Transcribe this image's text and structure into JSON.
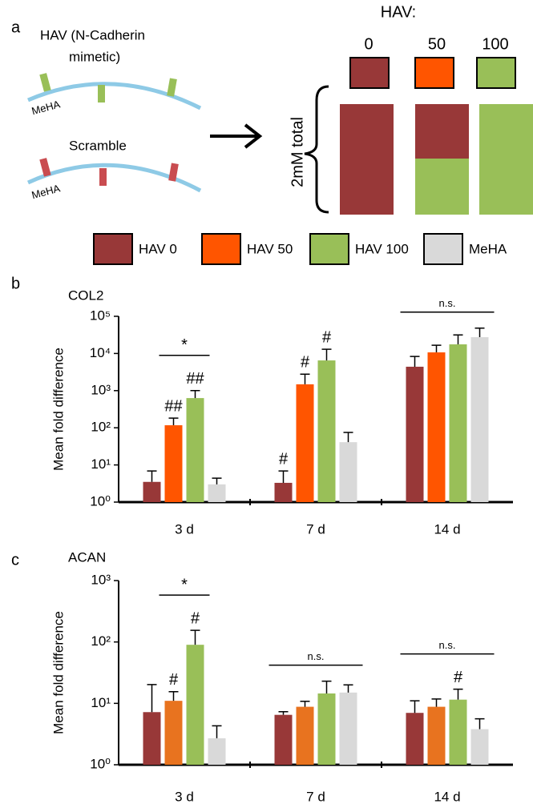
{
  "panel_labels": [
    "a",
    "b",
    "c"
  ],
  "diagram": {
    "peptide_label": [
      "HAV (N-Cadherin",
      "mimetic)"
    ],
    "scramble_label": "Scramble",
    "backbone_label": "MeHA",
    "header": "HAV:",
    "doses": [
      "0",
      "50",
      "100"
    ],
    "total_label": "2mM total"
  },
  "chart_data": [
    {
      "type": "bar",
      "title": "COL2",
      "y_label": "Mean fold difference",
      "log_scale": true,
      "categories": [
        "3 d",
        "7 d",
        "14 d"
      ],
      "ylim": [
        1,
        100000
      ],
      "yticks": [
        {
          "value": 1,
          "label": "10⁰"
        },
        {
          "value": 10,
          "label": "10¹"
        },
        {
          "value": 100,
          "label": "10²"
        },
        {
          "value": 1000,
          "label": "10³"
        },
        {
          "value": 10000,
          "label": "10⁴"
        },
        {
          "value": 100000,
          "label": "10⁵"
        }
      ],
      "series": [
        {
          "name": "HAV 0",
          "color": "#983838",
          "values": [
            3.5,
            3.3,
            4400
          ],
          "errors": [
            3.4,
            3.6,
            3900
          ]
        },
        {
          "name": "HAV 50",
          "color": "#ff5500",
          "values": [
            117,
            1480,
            10700
          ],
          "errors": [
            65,
            1300,
            6000
          ]
        },
        {
          "name": "HAV 100",
          "color": "#99bf58",
          "values": [
            630,
            6500,
            17600
          ],
          "errors": [
            370,
            6500,
            14000
          ]
        },
        {
          "name": "MeHA",
          "color": "#d9d9d9",
          "values": [
            3.0,
            41,
            27500
          ],
          "errors": [
            1.4,
            34,
            20500
          ]
        }
      ],
      "annotations": [
        {
          "text": "##",
          "category": 0,
          "series": 1
        },
        {
          "text": "##",
          "category": 0,
          "series": 2
        },
        {
          "text": "#",
          "category": 1,
          "series": 0
        },
        {
          "text": "#",
          "category": 1,
          "series": 1
        },
        {
          "text": "#",
          "category": 1,
          "series": 2
        }
      ],
      "brackets": [
        {
          "text": "*",
          "category": 0,
          "series": [
            1,
            2
          ]
        },
        {
          "text": "n.s.",
          "category": 2,
          "series": [
            0,
            3
          ]
        }
      ]
    },
    {
      "type": "bar",
      "title": "ACAN",
      "y_label": "Mean fold difference",
      "log_scale": true,
      "categories": [
        "3 d",
        "7 d",
        "14 d"
      ],
      "ylim": [
        1,
        1000
      ],
      "yticks": [
        {
          "value": 1,
          "label": "10⁰"
        },
        {
          "value": 10,
          "label": "10¹"
        },
        {
          "value": 100,
          "label": "10²"
        },
        {
          "value": 1000,
          "label": "10³"
        }
      ],
      "series": [
        {
          "color": "#983838",
          "values": [
            7.2,
            6.5,
            7.0
          ],
          "errors": [
            13,
            0.8,
            4
          ]
        },
        {
          "color": "#e8731f",
          "values": [
            11,
            8.8,
            8.8
          ],
          "errors": [
            4.5,
            2,
            3
          ]
        },
        {
          "color": "#99bf58",
          "values": [
            90,
            14.5,
            11.5
          ],
          "errors": [
            65,
            8.5,
            5.5
          ]
        },
        {
          "color": "#d9d9d9",
          "values": [
            2.7,
            15,
            3.8
          ],
          "errors": [
            1.6,
            5,
            1.8
          ]
        }
      ],
      "annotations": [
        {
          "text": "#",
          "category": 0,
          "series": 1
        },
        {
          "text": "#",
          "category": 0,
          "series": 2
        },
        {
          "text": "#",
          "category": 2,
          "series": 2
        }
      ],
      "brackets": [
        {
          "text": "*",
          "category": 0,
          "series": [
            1,
            2
          ]
        },
        {
          "text": "n.s.",
          "category": 1,
          "series": [
            0,
            3
          ]
        },
        {
          "text": "n.s.",
          "category": 2,
          "series": [
            0,
            3
          ]
        }
      ]
    }
  ]
}
